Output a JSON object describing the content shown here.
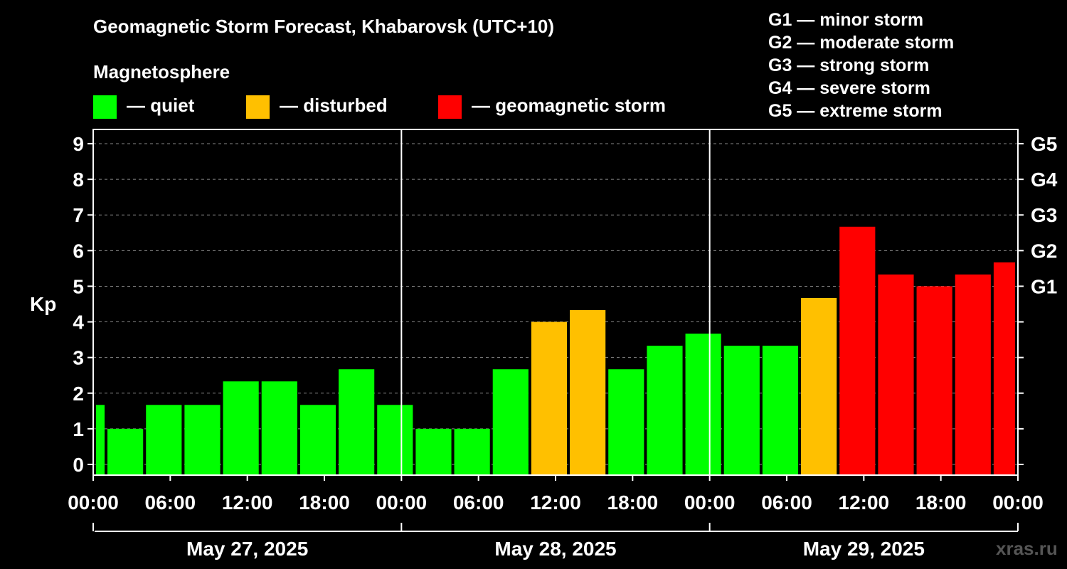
{
  "title": "Geomagnetic Storm Forecast, Khabarovsk (UTC+10)",
  "legend": {
    "title": "Magnetosphere",
    "items": [
      {
        "label": "— quiet",
        "color": "#00ff00"
      },
      {
        "label": "— disturbed",
        "color": "#ffc000"
      },
      {
        "label": "— geomagnetic storm",
        "color": "#ff0000"
      }
    ]
  },
  "storm_levels": [
    "G1 — minor storm",
    "G2 — moderate storm",
    "G3 — strong storm",
    "G4 — severe storm",
    "G5 — extreme storm"
  ],
  "watermark": "xras.ru",
  "chart_data": {
    "type": "bar",
    "ylabel": "Kp",
    "ylim": [
      -0.3,
      9.4
    ],
    "yticks": [
      0,
      1,
      2,
      3,
      4,
      5,
      6,
      7,
      8,
      9
    ],
    "right_axis_labels": [
      {
        "kp": 5,
        "label": "G1"
      },
      {
        "kp": 6,
        "label": "G2"
      },
      {
        "kp": 7,
        "label": "G3"
      },
      {
        "kp": 8,
        "label": "G4"
      },
      {
        "kp": 9,
        "label": "G5"
      }
    ],
    "x_range_hours": [
      0,
      72
    ],
    "xtick_hours": [
      0,
      6,
      12,
      18,
      24,
      30,
      36,
      42,
      48,
      54,
      60,
      66,
      72
    ],
    "xtick_labels": [
      "00:00",
      "06:00",
      "12:00",
      "18:00",
      "00:00",
      "06:00",
      "12:00",
      "18:00",
      "00:00",
      "06:00",
      "12:00",
      "18:00",
      "00:00"
    ],
    "day_separators_hours": [
      24,
      48
    ],
    "days": [
      "May 27, 2025",
      "May 28, 2025",
      "May 29, 2025"
    ],
    "grid": "dashed horizontal",
    "bars": [
      {
        "start": 0,
        "end": 1,
        "kp": 1.67,
        "level": "quiet"
      },
      {
        "start": 1,
        "end": 4,
        "kp": 1.0,
        "level": "quiet"
      },
      {
        "start": 4,
        "end": 7,
        "kp": 1.67,
        "level": "quiet"
      },
      {
        "start": 7,
        "end": 10,
        "kp": 1.67,
        "level": "quiet"
      },
      {
        "start": 10,
        "end": 13,
        "kp": 2.33,
        "level": "quiet"
      },
      {
        "start": 13,
        "end": 16,
        "kp": 2.33,
        "level": "quiet"
      },
      {
        "start": 16,
        "end": 19,
        "kp": 1.67,
        "level": "quiet"
      },
      {
        "start": 19,
        "end": 22,
        "kp": 2.67,
        "level": "quiet"
      },
      {
        "start": 22,
        "end": 25,
        "kp": 1.67,
        "level": "quiet"
      },
      {
        "start": 25,
        "end": 28,
        "kp": 1.0,
        "level": "quiet"
      },
      {
        "start": 28,
        "end": 31,
        "kp": 1.0,
        "level": "quiet"
      },
      {
        "start": 31,
        "end": 34,
        "kp": 2.67,
        "level": "quiet"
      },
      {
        "start": 34,
        "end": 37,
        "kp": 4.0,
        "level": "disturbed"
      },
      {
        "start": 37,
        "end": 40,
        "kp": 4.33,
        "level": "disturbed"
      },
      {
        "start": 40,
        "end": 43,
        "kp": 2.67,
        "level": "quiet"
      },
      {
        "start": 43,
        "end": 46,
        "kp": 3.33,
        "level": "quiet"
      },
      {
        "start": 46,
        "end": 49,
        "kp": 3.67,
        "level": "quiet"
      },
      {
        "start": 49,
        "end": 52,
        "kp": 3.33,
        "level": "quiet"
      },
      {
        "start": 52,
        "end": 55,
        "kp": 3.33,
        "level": "quiet"
      },
      {
        "start": 55,
        "end": 58,
        "kp": 4.67,
        "level": "disturbed"
      },
      {
        "start": 58,
        "end": 61,
        "kp": 6.67,
        "level": "storm"
      },
      {
        "start": 61,
        "end": 64,
        "kp": 5.33,
        "level": "storm"
      },
      {
        "start": 64,
        "end": 67,
        "kp": 5.0,
        "level": "storm"
      },
      {
        "start": 67,
        "end": 70,
        "kp": 5.33,
        "level": "storm"
      },
      {
        "start": 70,
        "end": 72,
        "kp": 5.67,
        "level": "storm"
      }
    ],
    "colors": {
      "quiet": "#00ff00",
      "disturbed": "#ffc000",
      "storm": "#ff0000"
    }
  }
}
